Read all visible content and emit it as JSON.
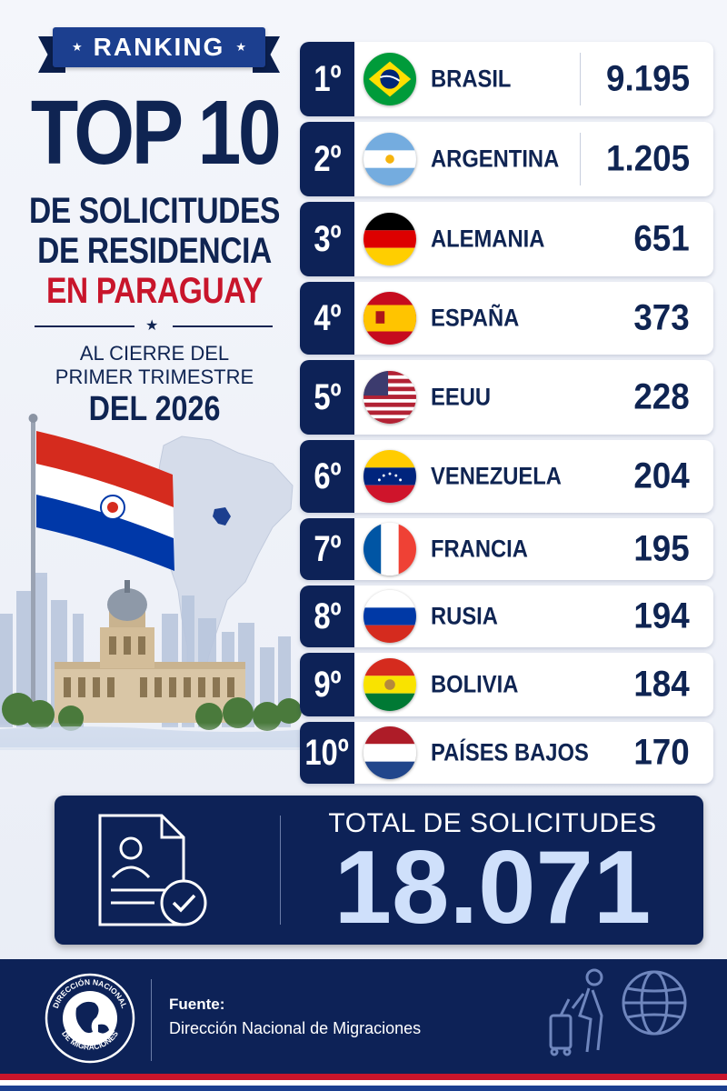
{
  "header": {
    "ribbon_label": "RANKING",
    "title_top": "TOP 10",
    "title_line1": "DE SOLICITUDES",
    "title_line2": "DE RESIDENCIA",
    "title_line3": "EN PARAGUAY",
    "subtitle_line1": "AL CIERRE DEL",
    "subtitle_line2": "PRIMER TRIMESTRE",
    "subtitle_line3": "DEL 2026"
  },
  "colors": {
    "navy": "#0d2257",
    "red_accent": "#c8152b",
    "light_value": "#cfe0fb"
  },
  "ranking": [
    {
      "position": "1º",
      "country": "BRASIL",
      "value": "9.195",
      "flag": "brazil-flag-icon"
    },
    {
      "position": "2º",
      "country": "ARGENTINA",
      "value": "1.205",
      "flag": "argentina-flag-icon"
    },
    {
      "position": "3º",
      "country": "ALEMANIA",
      "value": "651",
      "flag": "germany-flag-icon"
    },
    {
      "position": "4º",
      "country": "ESPAÑA",
      "value": "373",
      "flag": "spain-flag-icon"
    },
    {
      "position": "5º",
      "country": "EEUU",
      "value": "228",
      "flag": "usa-flag-icon"
    },
    {
      "position": "6º",
      "country": "VENEZUELA",
      "value": "204",
      "flag": "venezuela-flag-icon"
    },
    {
      "position": "7º",
      "country": "FRANCIA",
      "value": "195",
      "flag": "france-flag-icon"
    },
    {
      "position": "8º",
      "country": "RUSIA",
      "value": "194",
      "flag": "russia-flag-icon"
    },
    {
      "position": "9º",
      "country": "BOLIVIA",
      "value": "184",
      "flag": "bolivia-flag-icon"
    },
    {
      "position": "10º",
      "country": "PAÍSES BAJOS",
      "value": "170",
      "flag": "netherlands-flag-icon"
    }
  ],
  "total": {
    "label": "TOTAL DE SOLICITUDES",
    "value": "18.071",
    "icon": "document-check-icon"
  },
  "footer": {
    "seal_text_top": "DIRECCIÓN NACIONAL",
    "seal_text_bottom": "DE MIGRACIONES",
    "source_label": "Fuente:",
    "source_name": "Dirección Nacional de Migraciones",
    "icon": "traveler-globe-icon"
  }
}
